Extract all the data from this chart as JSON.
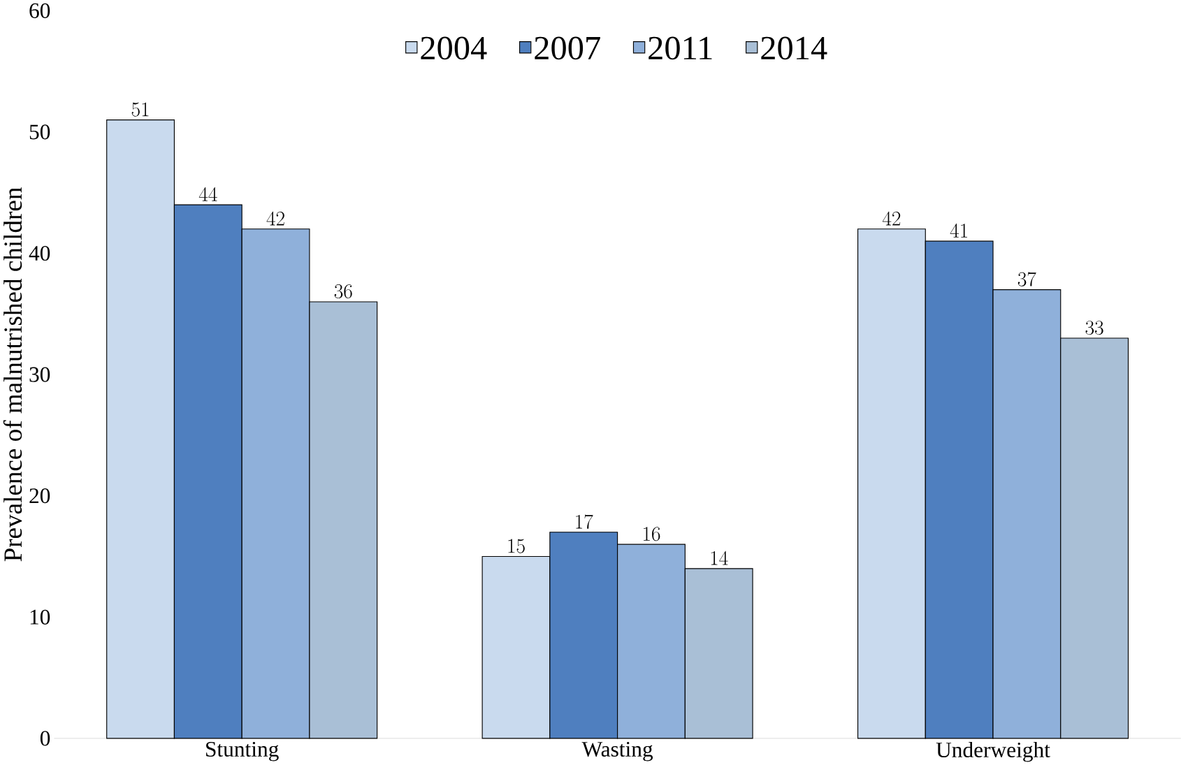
{
  "chart_data": {
    "type": "bar",
    "ylabel": "Prevalence of malnutrished children",
    "categories": [
      "Stunting",
      "Wasting",
      "Underweight"
    ],
    "series": [
      {
        "name": "2004",
        "color": "#c9daee",
        "values": [
          51,
          15,
          42
        ]
      },
      {
        "name": "2007",
        "color": "#4f7fbf",
        "values": [
          44,
          17,
          41
        ]
      },
      {
        "name": "2011",
        "color": "#8fb0da",
        "values": [
          42,
          16,
          37
        ]
      },
      {
        "name": "2014",
        "color": "#a9bfd6",
        "values": [
          36,
          14,
          33
        ]
      }
    ],
    "ylim": [
      0,
      60
    ],
    "yticks": [
      0,
      10,
      20,
      30,
      40,
      50,
      60
    ],
    "data_labels": true,
    "legend": "top",
    "grid": false
  }
}
